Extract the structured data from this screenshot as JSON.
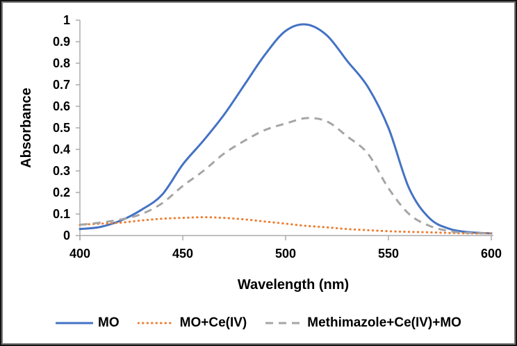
{
  "chart_data": {
    "type": "line",
    "title": "",
    "xlabel": "Wavelength (nm)",
    "ylabel": "Absorbance",
    "xlim": [
      400,
      600
    ],
    "ylim": [
      0,
      1
    ],
    "x_ticks": [
      400,
      450,
      500,
      550,
      600
    ],
    "y_ticks": [
      0,
      0.1,
      0.2,
      0.3,
      0.4,
      0.5,
      0.6,
      0.7,
      0.8,
      0.9,
      1
    ],
    "grid": false,
    "legend_position": "bottom",
    "x": [
      400,
      410,
      420,
      430,
      440,
      450,
      460,
      470,
      480,
      490,
      500,
      510,
      520,
      530,
      540,
      550,
      560,
      570,
      580,
      590,
      600
    ],
    "series": [
      {
        "name": "MO",
        "color": "#4472C4",
        "line_style": "solid",
        "peak": {
          "wavelength": 508,
          "absorbance": 0.98
        },
        "values": [
          0.03,
          0.04,
          0.07,
          0.12,
          0.19,
          0.33,
          0.44,
          0.56,
          0.7,
          0.84,
          0.95,
          0.98,
          0.93,
          0.81,
          0.69,
          0.5,
          0.22,
          0.08,
          0.03,
          0.015,
          0.01
        ]
      },
      {
        "name": "MO+Ce(IV)",
        "color": "#ED7D31",
        "line_style": "dotted",
        "peak": {
          "wavelength": 462,
          "absorbance": 0.085
        },
        "values": [
          0.05,
          0.055,
          0.06,
          0.07,
          0.078,
          0.082,
          0.085,
          0.082,
          0.075,
          0.065,
          0.055,
          0.045,
          0.038,
          0.03,
          0.025,
          0.02,
          0.017,
          0.015,
          0.012,
          0.01,
          0.01
        ]
      },
      {
        "name": "Methimazole+Ce(IV)+MO",
        "color": "#A5A5A5",
        "line_style": "dashed",
        "peak": {
          "wavelength": 508,
          "absorbance": 0.545
        },
        "values": [
          0.05,
          0.06,
          0.075,
          0.1,
          0.15,
          0.23,
          0.3,
          0.38,
          0.44,
          0.49,
          0.52,
          0.545,
          0.53,
          0.46,
          0.38,
          0.22,
          0.1,
          0.045,
          0.02,
          0.012,
          0.01
        ]
      }
    ]
  },
  "style": {
    "axis_color": "#ABABAB",
    "text_color": "#000000",
    "background": "#FFFFFF",
    "frame_border_outer": "#141414",
    "frame_border_inner": "#777777"
  }
}
